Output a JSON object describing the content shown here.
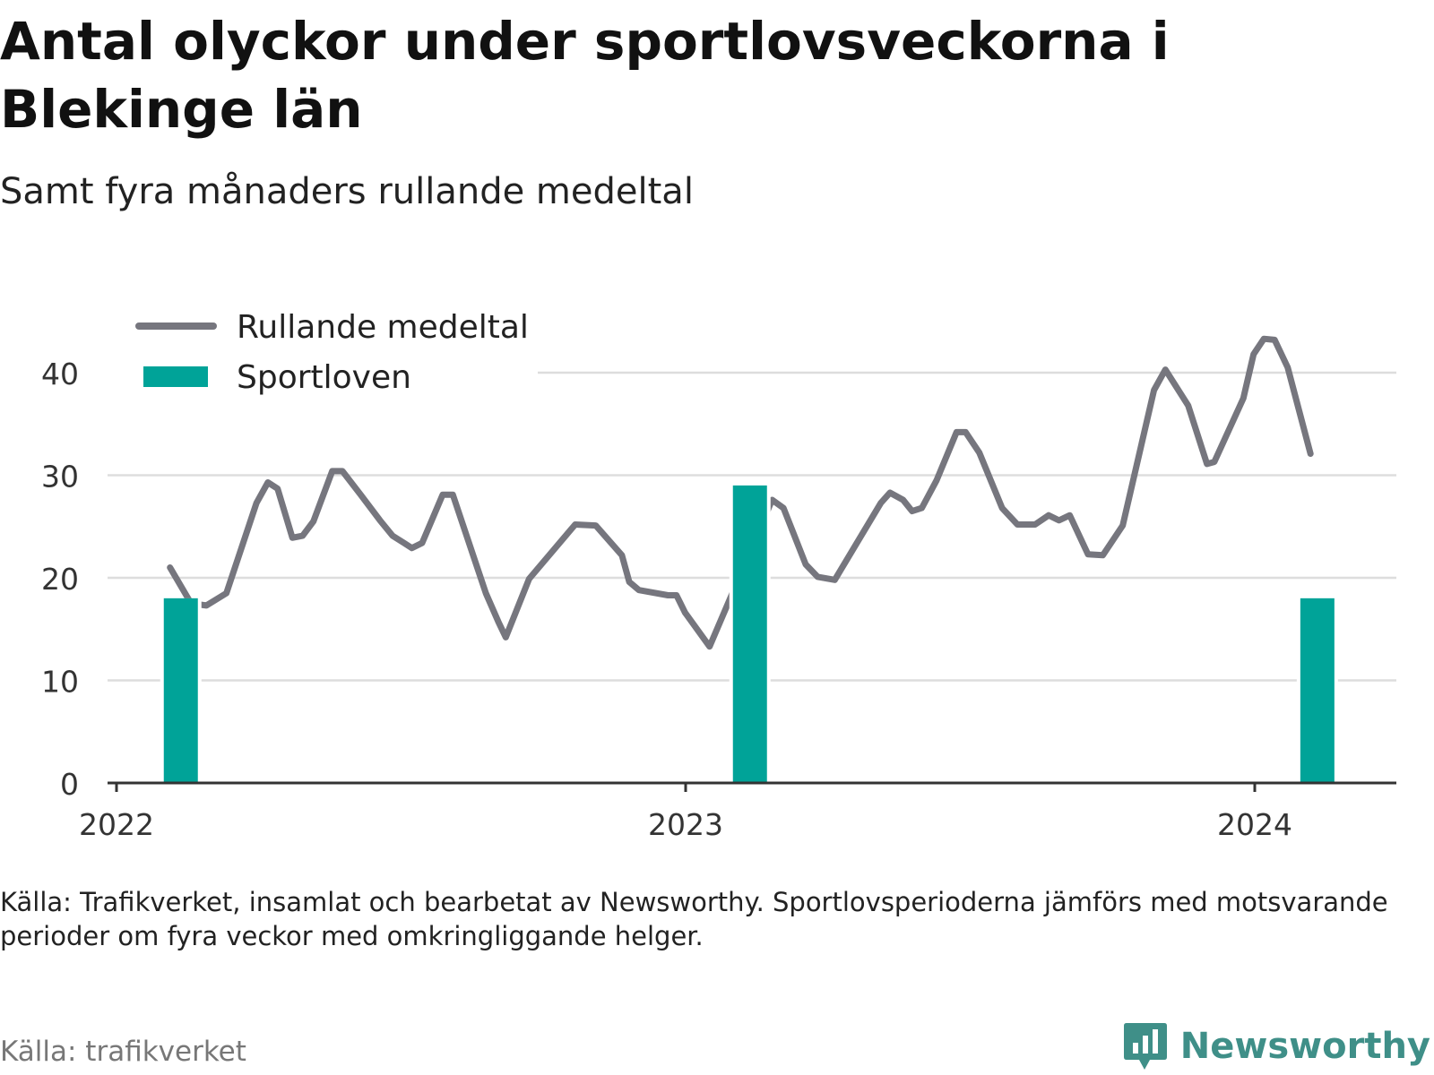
{
  "title": "Antal olyckor under sportlovsveckorna i Blekinge län",
  "subtitle": "Samt fyra månaders rullande medeltal",
  "note": "Källa: Trafikverket, insamlat och bearbetat av Newsworthy. Sportlovsperioderna jämförs med motsvarande perioder om fyra veckor med omkringliggande helger.",
  "footer": {
    "source": "Källa: trafikverket",
    "brand": "Newsworthy"
  },
  "colors": {
    "line": "#76767e",
    "bar": "#00a398",
    "grid": "#dddddd",
    "axis": "#333333",
    "brand": "#3f8f88"
  },
  "chart_data": {
    "type": "bar+line",
    "ylim": [
      0,
      45
    ],
    "yticks": [
      0,
      10,
      20,
      30,
      40
    ],
    "xlim": [
      2022.0,
      2024.25
    ],
    "xticks": [
      2022,
      2023,
      2024
    ],
    "grid": true,
    "legend": {
      "position": "top-left",
      "entries": [
        {
          "label": "Rullande medeltal",
          "kind": "line"
        },
        {
          "label": "Sportloven",
          "kind": "bar"
        }
      ]
    },
    "bars": {
      "name": "Sportloven",
      "x": [
        2022.113,
        2023.113,
        2024.11
      ],
      "values": [
        18,
        29,
        18
      ]
    },
    "line": {
      "name": "Rullande medeltal",
      "points": [
        [
          2022.094,
          21
        ],
        [
          2022.131,
          17.5
        ],
        [
          2022.158,
          17.3
        ],
        [
          2022.193,
          18.5
        ],
        [
          2022.246,
          27.3
        ],
        [
          2022.266,
          29.3
        ],
        [
          2022.283,
          28.7
        ],
        [
          2022.309,
          23.9
        ],
        [
          2022.327,
          24.1
        ],
        [
          2022.346,
          25.5
        ],
        [
          2022.379,
          30.4
        ],
        [
          2022.397,
          30.4
        ],
        [
          2022.429,
          28.1
        ],
        [
          2022.463,
          25.6
        ],
        [
          2022.485,
          24.1
        ],
        [
          2022.505,
          23.4
        ],
        [
          2022.519,
          22.9
        ],
        [
          2022.537,
          23.4
        ],
        [
          2022.573,
          28.1
        ],
        [
          2022.591,
          28.1
        ],
        [
          2022.649,
          18.5
        ],
        [
          2022.671,
          15.7
        ],
        [
          2022.684,
          14.2
        ],
        [
          2022.725,
          19.9
        ],
        [
          2022.806,
          25.2
        ],
        [
          2022.842,
          25.1
        ],
        [
          2022.888,
          22.2
        ],
        [
          2022.901,
          19.6
        ],
        [
          2022.918,
          18.8
        ],
        [
          2022.969,
          18.3
        ],
        [
          2022.984,
          18.3
        ],
        [
          2022.999,
          16.6
        ],
        [
          2023.042,
          13.3
        ],
        [
          2023.079,
          18.1
        ],
        [
          2023.152,
          27.6
        ],
        [
          2023.172,
          26.8
        ],
        [
          2023.211,
          21.3
        ],
        [
          2023.232,
          20.1
        ],
        [
          2023.262,
          19.8
        ],
        [
          2023.343,
          27.3
        ],
        [
          2023.359,
          28.3
        ],
        [
          2023.382,
          27.6
        ],
        [
          2023.398,
          26.5
        ],
        [
          2023.415,
          26.8
        ],
        [
          2023.441,
          29.5
        ],
        [
          2023.476,
          34.2
        ],
        [
          2023.492,
          34.2
        ],
        [
          2023.516,
          32.2
        ],
        [
          2023.556,
          26.8
        ],
        [
          2023.583,
          25.2
        ],
        [
          2023.614,
          25.2
        ],
        [
          2023.638,
          26.1
        ],
        [
          2023.656,
          25.6
        ],
        [
          2023.675,
          26.1
        ],
        [
          2023.707,
          22.3
        ],
        [
          2023.733,
          22.2
        ],
        [
          2023.768,
          25.1
        ],
        [
          2023.823,
          38.3
        ],
        [
          2023.843,
          40.3
        ],
        [
          2023.883,
          36.8
        ],
        [
          2023.916,
          31.1
        ],
        [
          2023.929,
          31.3
        ],
        [
          2023.98,
          37.5
        ],
        [
          2023.998,
          41.8
        ],
        [
          2024.016,
          43.3
        ],
        [
          2024.035,
          43.2
        ],
        [
          2024.058,
          40.5
        ],
        [
          2024.098,
          32.1
        ]
      ]
    }
  }
}
